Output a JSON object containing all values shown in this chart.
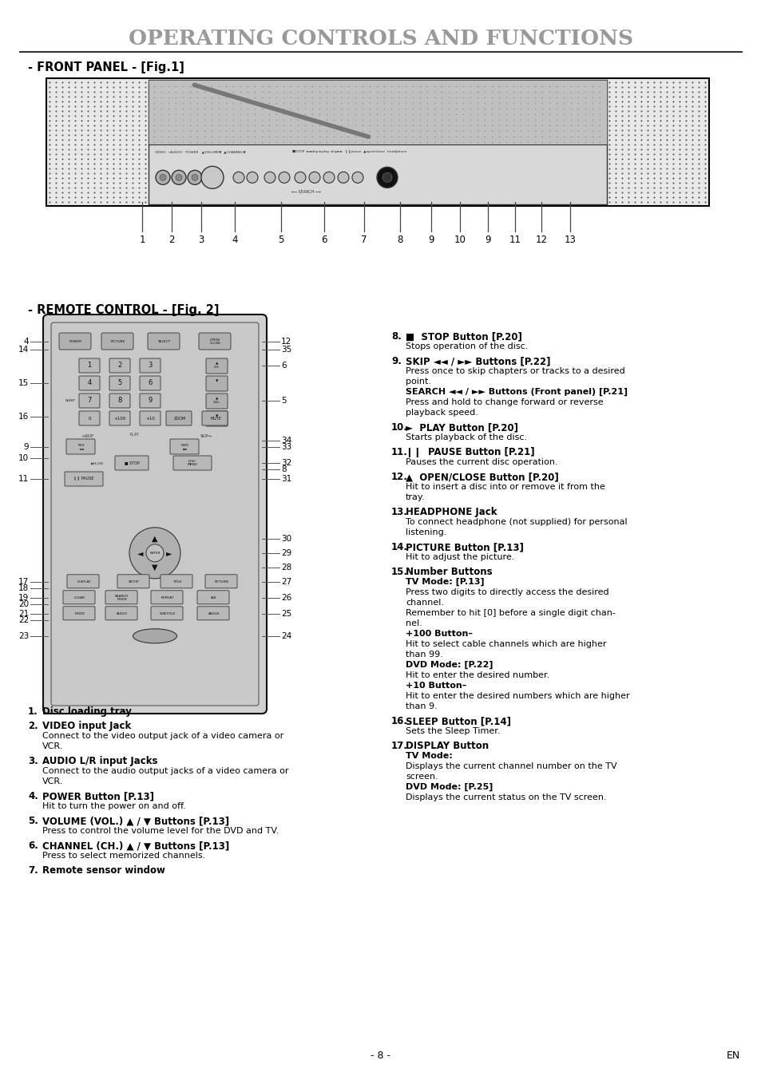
{
  "title": "OPERATING CONTROLS AND FUNCTIONS",
  "title_color": "#888888",
  "bg_color": "#ffffff",
  "text_color": "#000000",
  "front_panel_label": "- FRONT PANEL - [Fig.1]",
  "remote_label": "- REMOTE CONTROL - [Fig. 2]",
  "page_number": "- 8 -",
  "page_en": "EN",
  "items_left": [
    {
      "num": "1.",
      "bold": "Disc loading tray",
      "text": ""
    },
    {
      "num": "2.",
      "bold": "VIDEO input Jack",
      "text": "Connect to the video output jack of a video camera or\nVCR."
    },
    {
      "num": "3.",
      "bold": "AUDIO L/R input Jacks",
      "text": "Connect to the audio output jacks of a video camera or\nVCR."
    },
    {
      "num": "4.",
      "bold": "POWER Button",
      "ref": "[P.13]",
      "text": "Hit to turn the power on and off."
    },
    {
      "num": "5.",
      "bold": "VOLUME (VOL.) ▲ / ▼ Buttons",
      "ref": "[P.13]",
      "text": "Press to control the volume level for the DVD and TV."
    },
    {
      "num": "6.",
      "bold": "CHANNEL (CH.) ▲ / ▼ Buttons",
      "ref": "[P.13]",
      "text": "Press to select memorized channels."
    },
    {
      "num": "7.",
      "bold": "Remote sensor window",
      "text": ""
    }
  ],
  "items_right": [
    {
      "num": "8.",
      "bold": "■  STOP Button",
      "ref": "[P.20]",
      "text": "Stops operation of the disc."
    },
    {
      "num": "9.",
      "bold": "SKIP ◄◄ / ►► Buttons",
      "ref": "[P.22]",
      "text": "Press once to skip chapters or tracks to a desired\npoint.\nSEARCH ◄◄ / ►► Buttons (Front panel) [P.21]\nPress and hold to change forward or reverse\nplayback speed."
    },
    {
      "num": "10.",
      "bold": "►  PLAY Button",
      "ref": "[P.20]",
      "text": "Starts playback of the disc."
    },
    {
      "num": "11.",
      "bold": "❙❙  PAUSE Button",
      "ref": "[P.21]",
      "text": "Pauses the current disc operation."
    },
    {
      "num": "12.",
      "bold": "▲  OPEN/CLOSE Button",
      "ref": "[P.20]",
      "text": "Hit to insert a disc into or remove it from the\ntray."
    },
    {
      "num": "13.",
      "bold": "HEADPHONE Jack",
      "text": "To connect headphone (not supplied) for personal\nlistening."
    },
    {
      "num": "14.",
      "bold": "PICTURE Button",
      "ref": "[P.13]",
      "text": "Hit to adjust the picture."
    },
    {
      "num": "15.",
      "bold": "Number Buttons",
      "text": "TV Mode: [P.13]\nPress two digits to directly access the desired\nchannel.\nRemember to hit [0] before a single digit chan-\nnel.\n+100 Button–\nHit to select cable channels which are higher\nthan 99.\nDVD Mode: [P.22]\nHit to enter the desired number.\n+10 Button–\nHit to enter the desired numbers which are higher\nthan 9."
    },
    {
      "num": "16.",
      "bold": "SLEEP Button",
      "ref": "[P.14]",
      "text": "Sets the Sleep Timer."
    },
    {
      "num": "17.",
      "bold": "DISPLAY Button",
      "text": "TV Mode:\nDisplays the current channel number on the TV\nscreen.\nDVD Mode: [P.25]\nDisplays the current status on the TV screen."
    }
  ],
  "front_panel_numbers": [
    "1",
    "2",
    "3",
    "4",
    "5",
    "6",
    "7",
    "8",
    "9",
    "10",
    "9",
    "11",
    "12",
    "13"
  ]
}
